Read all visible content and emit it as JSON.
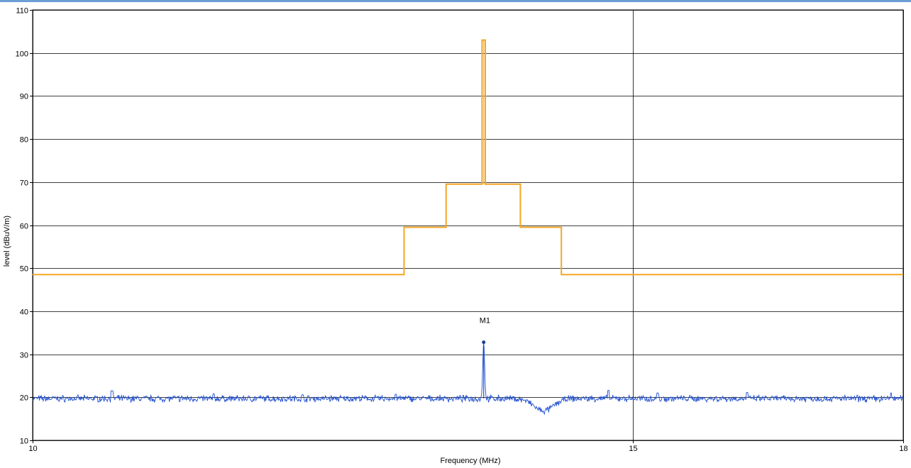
{
  "colors": {
    "topbar": "#6d9fd6",
    "grid": "#000000",
    "limit": "#f5a623",
    "trace": "#1f4fd1",
    "marker": "#1f3f8f"
  },
  "chart_data": {
    "type": "line",
    "title": "",
    "xlabel": "Frequency (MHz)",
    "ylabel": "level (dBuV/m)",
    "xscale": "log",
    "xlim": [
      10,
      18
    ],
    "ylim": [
      10,
      110
    ],
    "x_ticks": [
      10,
      15,
      18
    ],
    "y_ticks": [
      10,
      20,
      30,
      40,
      50,
      60,
      70,
      80,
      90,
      100,
      110
    ],
    "grid": true,
    "series": [
      {
        "role": "limit",
        "points": [
          [
            10,
            48.5
          ],
          [
            12.85,
            48.5
          ],
          [
            12.85,
            59.5
          ],
          [
            13.22,
            59.5
          ],
          [
            13.22,
            69.5
          ],
          [
            13.545,
            69.5
          ],
          [
            13.545,
            103
          ],
          [
            13.575,
            103
          ],
          [
            13.575,
            69.5
          ],
          [
            13.9,
            69.5
          ],
          [
            13.9,
            59.5
          ],
          [
            14.29,
            59.5
          ],
          [
            14.29,
            48.5
          ],
          [
            18,
            48.5
          ]
        ]
      },
      {
        "role": "measurement",
        "baseline": 19.7,
        "noise": 0.6,
        "spurs": [
          [
            10.55,
            21.5
          ],
          [
            11.3,
            20.8
          ],
          [
            12.0,
            20.6
          ],
          [
            12.78,
            20.7
          ],
          [
            14.75,
            21.6
          ],
          [
            15.25,
            21.0
          ],
          [
            16.2,
            21.1
          ],
          [
            17.85,
            21.0
          ]
        ],
        "peak": [
          13.56,
          32.8
        ],
        "dip": [
          14.12,
          16.8
        ]
      }
    ],
    "markers": [
      {
        "label": "M1",
        "x": 13.56,
        "y": 32.8
      }
    ]
  }
}
